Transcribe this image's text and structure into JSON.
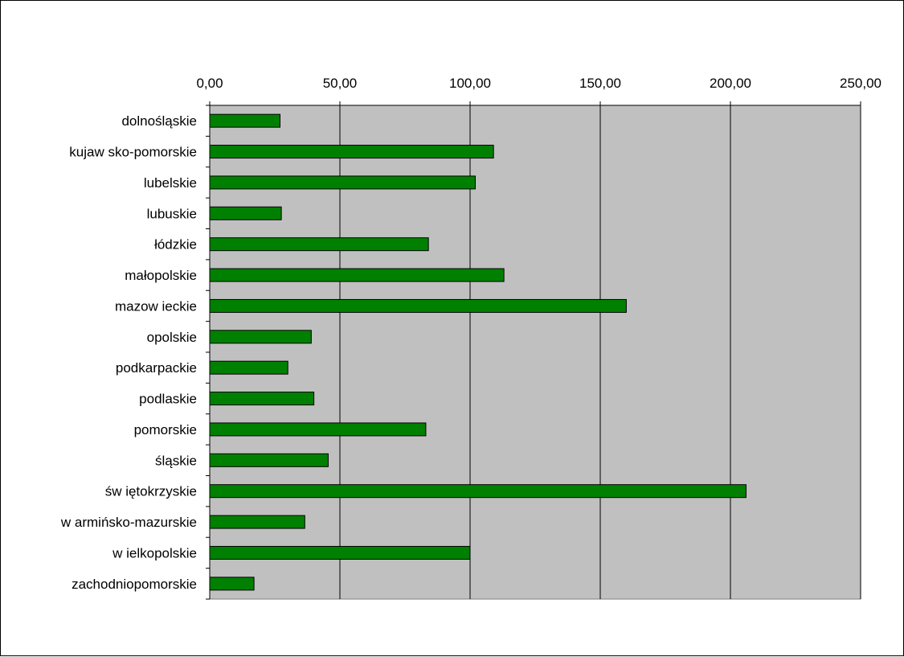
{
  "chart_data": {
    "type": "bar",
    "orientation": "horizontal",
    "title": "",
    "xlabel": "",
    "ylabel": "",
    "categories": [
      "dolnośląskie",
      "kujaw sko-pomorskie",
      "lubelskie",
      "lubuskie",
      "łódzkie",
      "małopolskie",
      "mazow ieckie",
      "opolskie",
      "podkarpackie",
      "podlaskie",
      "pomorskie",
      "śląskie",
      "św iętokrzyskie",
      "w armińsko-mazurskie",
      "w ielkopolskie",
      "zachodniopomorskie"
    ],
    "values": [
      27,
      109,
      102,
      27.5,
      84,
      113,
      160,
      39,
      30,
      40,
      83,
      45.5,
      206,
      36.5,
      100,
      17
    ],
    "xlim": [
      0,
      250
    ],
    "xticks": [
      0,
      50,
      100,
      150,
      200,
      250
    ],
    "tick_labels": [
      "0,00",
      "50,00",
      "100,00",
      "150,00",
      "200,00",
      "250,00"
    ],
    "x_axis_position": "top",
    "grid": "vertical",
    "legend": "none",
    "colors": {
      "bar_fill": "#008000",
      "bar_stroke": "#000000",
      "plot_background": "#c0c0c0",
      "grid": "#000000"
    }
  }
}
